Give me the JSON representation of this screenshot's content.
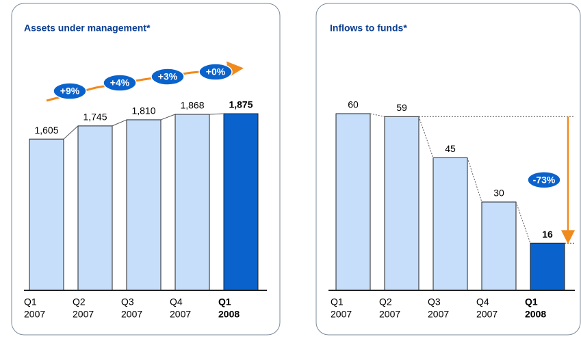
{
  "chart_data": [
    {
      "type": "bar",
      "title": "Assets under management*",
      "categories": [
        [
          "Q1",
          "2007"
        ],
        [
          "Q2",
          "2007"
        ],
        [
          "Q3",
          "2007"
        ],
        [
          "Q4",
          "2007"
        ],
        [
          "Q1",
          "2008"
        ]
      ],
      "values": [
        1605,
        1745,
        1810,
        1868,
        1875
      ],
      "value_labels": [
        "1,605",
        "1,745",
        "1,810",
        "1,868",
        "1,875"
      ],
      "colors": [
        "#c6defa",
        "#c6defa",
        "#c6defa",
        "#c6defa",
        "#0a62cc"
      ],
      "annotations": [
        "+9%",
        "+4%",
        "+3%",
        "+0%"
      ]
    },
    {
      "type": "bar",
      "title": "Inflows to funds*",
      "categories": [
        [
          "Q1",
          "2007"
        ],
        [
          "Q2",
          "2007"
        ],
        [
          "Q3",
          "2007"
        ],
        [
          "Q4",
          "2007"
        ],
        [
          "Q1",
          "2008"
        ]
      ],
      "values": [
        60,
        59,
        45,
        30,
        16
      ],
      "colors": [
        "#c6defa",
        "#c6defa",
        "#c6defa",
        "#c6defa",
        "#0a62cc"
      ],
      "annotations": [
        "-73%"
      ]
    }
  ]
}
